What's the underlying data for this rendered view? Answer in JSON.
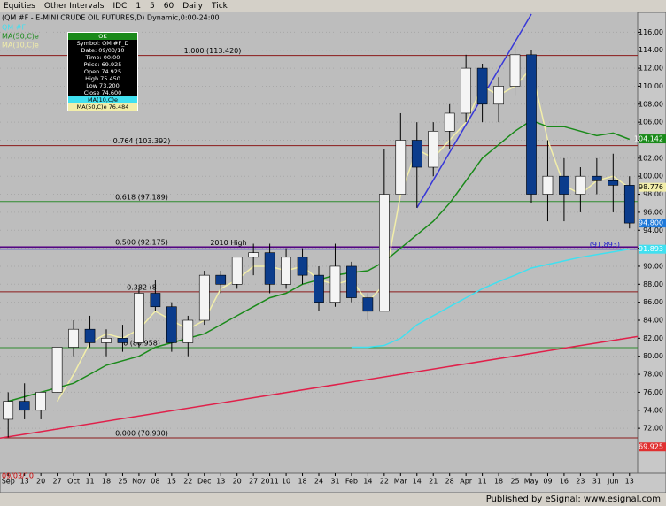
{
  "toolbar": {
    "items": [
      "Equities",
      "Other Intervals",
      "IDC",
      "1",
      "5",
      "60",
      "Daily",
      "Tick"
    ]
  },
  "footer": "Published by eSignal: www.esignal.com",
  "data_window": {
    "title": "OK",
    "rows": [
      "Symbol: QM #F_D",
      "Date: 09/03/10",
      "Time: 00:00",
      "Price: 69.925",
      "Open 74.925",
      "High 75.450",
      "Low 73.200",
      "Close 74.600",
      "MA(10,C)e",
      "MA(50,C)e 76.484"
    ]
  },
  "chart_data": {
    "type": "candlestick",
    "title": "(QM #F - E-MINI CRUDE OIL FUTURES,D) Dynamic,0:00-24:00",
    "date_label": "09/03/10",
    "categories": [
      "Sep",
      "13",
      "20",
      "27",
      "Oct",
      "11",
      "18",
      "25",
      "Nov",
      "08",
      "15",
      "22",
      "Dec",
      "13",
      "20",
      "27",
      "2011",
      "10",
      "18",
      "24",
      "31",
      "Feb",
      "14",
      "22",
      "Mar",
      "14",
      "21",
      "28",
      "Apr",
      "11",
      "18",
      "25",
      "May",
      "09",
      "16",
      "23",
      "31",
      "Jun",
      "13"
    ],
    "open": [
      73,
      75,
      74,
      76,
      81,
      83,
      81.5,
      82,
      81.5,
      87,
      85.5,
      81.5,
      84,
      89,
      88,
      91,
      91.5,
      88,
      91,
      89,
      86,
      90,
      86.5,
      85,
      98,
      104,
      101,
      105,
      107,
      112,
      108,
      110,
      113.5,
      98,
      100,
      98,
      100,
      99.5,
      99
    ],
    "high": [
      76,
      77,
      76,
      81,
      84,
      84.5,
      83,
      83.5,
      87.5,
      88.5,
      86,
      84.5,
      89.5,
      89.5,
      91,
      92.5,
      92.5,
      92,
      92,
      90,
      92.5,
      90.5,
      87,
      103,
      107,
      106,
      106,
      108,
      113.5,
      112.5,
      111,
      114.5,
      114,
      104,
      102,
      101,
      102,
      102.5,
      100
    ],
    "low": [
      71,
      73,
      73,
      76,
      80,
      81,
      80,
      80.5,
      81,
      85,
      80.5,
      80,
      83.5,
      87,
      87.5,
      89,
      87,
      87.5,
      88,
      85,
      85.5,
      86,
      84,
      85,
      98,
      96.5,
      100,
      103,
      106,
      106,
      106,
      109,
      97,
      95,
      95,
      96,
      98,
      96,
      94.2
    ],
    "close": [
      75,
      74,
      76,
      81,
      83,
      81.5,
      82,
      81.5,
      87,
      85.5,
      81.5,
      84,
      89,
      88,
      91,
      91.5,
      88,
      91,
      89,
      86,
      90,
      86.5,
      85,
      98,
      104,
      101,
      105,
      107,
      112,
      108,
      110,
      113.5,
      98,
      100,
      98,
      100,
      99.5,
      99,
      94.8
    ],
    "up_color": "#f4f4f4",
    "down_color": "#0b3c8c",
    "series": [
      {
        "name": "MA(10,C)e",
        "color": "#f2eeaa",
        "values": [
          null,
          null,
          null,
          75,
          78,
          81.5,
          82.5,
          82,
          83,
          85,
          84,
          83,
          84,
          87.5,
          88.5,
          90,
          90,
          89.5,
          90,
          88.5,
          88,
          88.5,
          86,
          88,
          98,
          103,
          102,
          104,
          106,
          110,
          109,
          110,
          112,
          104,
          99,
          98,
          99.5,
          100,
          98.7
        ]
      },
      {
        "name": "MA(50,C)e",
        "color": "#1a8a1a",
        "values": [
          75,
          75.5,
          76,
          76.5,
          77,
          78,
          79,
          79.5,
          80,
          81,
          81.5,
          82,
          82.5,
          83.5,
          84.5,
          85.5,
          86.5,
          87,
          88,
          88.5,
          89,
          89.3,
          89.5,
          90.5,
          92,
          93.5,
          95,
          97,
          99.5,
          102,
          103.5,
          105,
          106.2,
          105.5,
          105.5,
          105,
          104.5,
          104.8,
          104.1
        ]
      },
      {
        "name": "QM #F",
        "color": "#40e0f0",
        "values": [
          null,
          null,
          null,
          null,
          null,
          null,
          null,
          null,
          null,
          null,
          null,
          null,
          null,
          null,
          null,
          null,
          null,
          null,
          null,
          null,
          null,
          81,
          81,
          81.2,
          82,
          83.5,
          84.5,
          85.5,
          86.5,
          87.5,
          88.3,
          89,
          89.8,
          90.2,
          90.6,
          91,
          91.3,
          91.6,
          91.9
        ]
      }
    ],
    "levels": [
      {
        "label": "0.000 (70.930)",
        "value": 70.93,
        "color": "#8b1a1a"
      },
      {
        "label": "6 (80.958)",
        "value": 80.958,
        "color": "#2e8b2e"
      },
      {
        "label": "0.382 (8",
        "value": 87.161,
        "color": "#8b1a1a"
      },
      {
        "label": "0.500 (92.175)",
        "value": 92.175,
        "color": "#6a1a8b"
      },
      {
        "label": "0.618 (97.189)",
        "value": 97.189,
        "color": "#2e8b2e"
      },
      {
        "label": "0.764 (103.392)",
        "value": 103.392,
        "color": "#8b1a1a"
      },
      {
        "label": "1.000 (113.420)",
        "value": 113.42,
        "color": "#8b1a1a"
      },
      {
        "label": "2010 High",
        "value": 92.1,
        "color": "#4b0082"
      },
      {
        "label": "(91.893)",
        "value": 91.893,
        "color": "#1a1acc"
      }
    ],
    "trendlines": [
      {
        "from": "Sep",
        "to": "13",
        "y1": 70.9,
        "y2": 82.2,
        "color": "#e0204a"
      },
      {
        "from": "14",
        "to": "May",
        "y1": 96.5,
        "y2": 118,
        "color": "#3838d8"
      }
    ],
    "last_values": [
      {
        "label": "104.142",
        "value": 104.142,
        "color": "#1a8a1a"
      },
      {
        "label": "98.776",
        "value": 98.776,
        "color": "#f2eeaa"
      },
      {
        "label": "94.800",
        "value": 94.8,
        "color": "#1e78d8"
      },
      {
        "label": "91.893",
        "value": 91.893,
        "color": "#40e0f0"
      },
      {
        "label": "69.925",
        "value": 69.925,
        "color": "#e03030"
      }
    ],
    "ylim": [
      67,
      118.2
    ],
    "yticks": [
      {
        "value": 72,
        "label": "72.00"
      },
      {
        "value": 74,
        "label": "74.00"
      },
      {
        "value": 76,
        "label": "76.00"
      },
      {
        "value": 78,
        "label": "78.00"
      },
      {
        "value": 80,
        "label": "80.00"
      },
      {
        "value": 82,
        "label": "82.00"
      },
      {
        "value": 84,
        "label": "84.00"
      },
      {
        "value": 86,
        "label": "86.00"
      },
      {
        "value": 88,
        "label": "88.00"
      },
      {
        "value": 90,
        "label": "90.00"
      },
      {
        "value": 92,
        "label": "92.00"
      },
      {
        "value": 94,
        "label": "94.00"
      },
      {
        "value": 96,
        "label": "96.00"
      },
      {
        "value": 98,
        "label": "98.00"
      },
      {
        "value": 100,
        "label": "100.00"
      },
      {
        "value": 102,
        "label": "102.00"
      },
      {
        "value": 104,
        "label": "104.00"
      },
      {
        "value": 106,
        "label": "106.00"
      },
      {
        "value": 108,
        "label": "108.00"
      },
      {
        "value": 110,
        "label": "110.00"
      },
      {
        "value": 112,
        "label": "112.00"
      },
      {
        "value": 114,
        "label": "114.00"
      },
      {
        "value": 116,
        "label": "116.00"
      }
    ]
  }
}
